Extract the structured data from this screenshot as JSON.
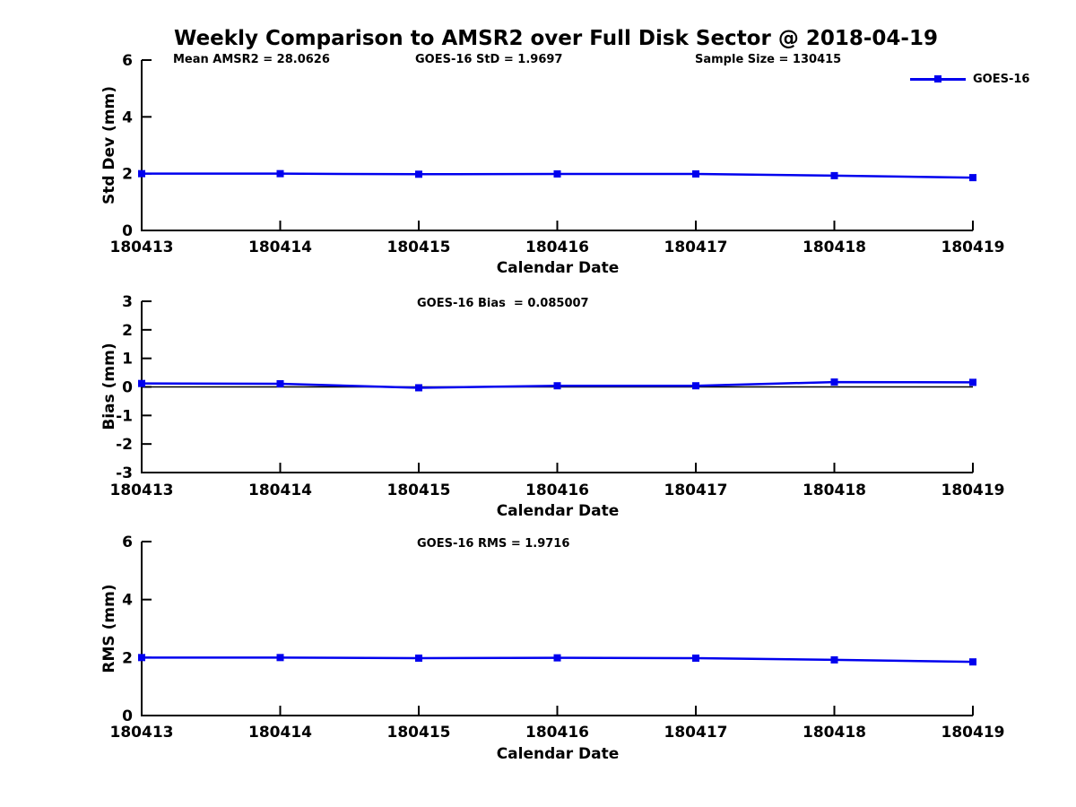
{
  "title": "Weekly Comparison to AMSR2 over Full Disk Sector @ 2018-04-19",
  "legend": {
    "label": "GOES-16",
    "color": "#0000EE"
  },
  "accent_color": "#0000EE",
  "chart_data": [
    {
      "type": "line",
      "name": "std-dev-panel",
      "x": [
        "180413",
        "180414",
        "180415",
        "180416",
        "180417",
        "180418",
        "180419"
      ],
      "series": [
        {
          "name": "GOES-16",
          "values": [
            2.0,
            2.0,
            1.98,
            1.99,
            1.99,
            1.93,
            1.86
          ]
        }
      ],
      "ylabel": "Std Dev (mm)",
      "xlabel": "Calendar Date",
      "ylim": [
        0,
        6
      ],
      "yticks": [
        0,
        2,
        4,
        6
      ],
      "grid": false,
      "line_color": "#0000EE",
      "marker": "square",
      "annotations": [
        "Mean AMSR2 = 28.0626",
        "GOES-16 StD = 1.9697",
        "Sample Size = 130415"
      ],
      "legend_position": "top-right-outside"
    },
    {
      "type": "line",
      "name": "bias-panel",
      "x": [
        "180413",
        "180414",
        "180415",
        "180416",
        "180417",
        "180418",
        "180419"
      ],
      "series": [
        {
          "name": "GOES-16",
          "values": [
            0.12,
            0.11,
            -0.03,
            0.04,
            0.04,
            0.17,
            0.16
          ]
        }
      ],
      "ylabel": "Bias (mm)",
      "xlabel": "Calendar Date",
      "ylim": [
        -3,
        3
      ],
      "yticks": [
        3,
        2,
        1,
        0,
        -1,
        -2,
        -3
      ],
      "refline": 0,
      "grid": false,
      "line_color": "#0000EE",
      "marker": "square",
      "annotation": "GOES-16 Bias  = 0.085007"
    },
    {
      "type": "line",
      "name": "rms-panel",
      "x": [
        "180413",
        "180414",
        "180415",
        "180416",
        "180417",
        "180418",
        "180419"
      ],
      "series": [
        {
          "name": "GOES-16",
          "values": [
            2.0,
            2.0,
            1.98,
            1.99,
            1.98,
            1.92,
            1.85
          ]
        }
      ],
      "ylabel": "RMS (mm)",
      "xlabel": "Calendar Date",
      "ylim": [
        0,
        6
      ],
      "yticks": [
        0,
        2,
        4,
        6
      ],
      "grid": false,
      "line_color": "#0000EE",
      "marker": "square",
      "annotation": "GOES-16 RMS = 1.9716"
    }
  ]
}
